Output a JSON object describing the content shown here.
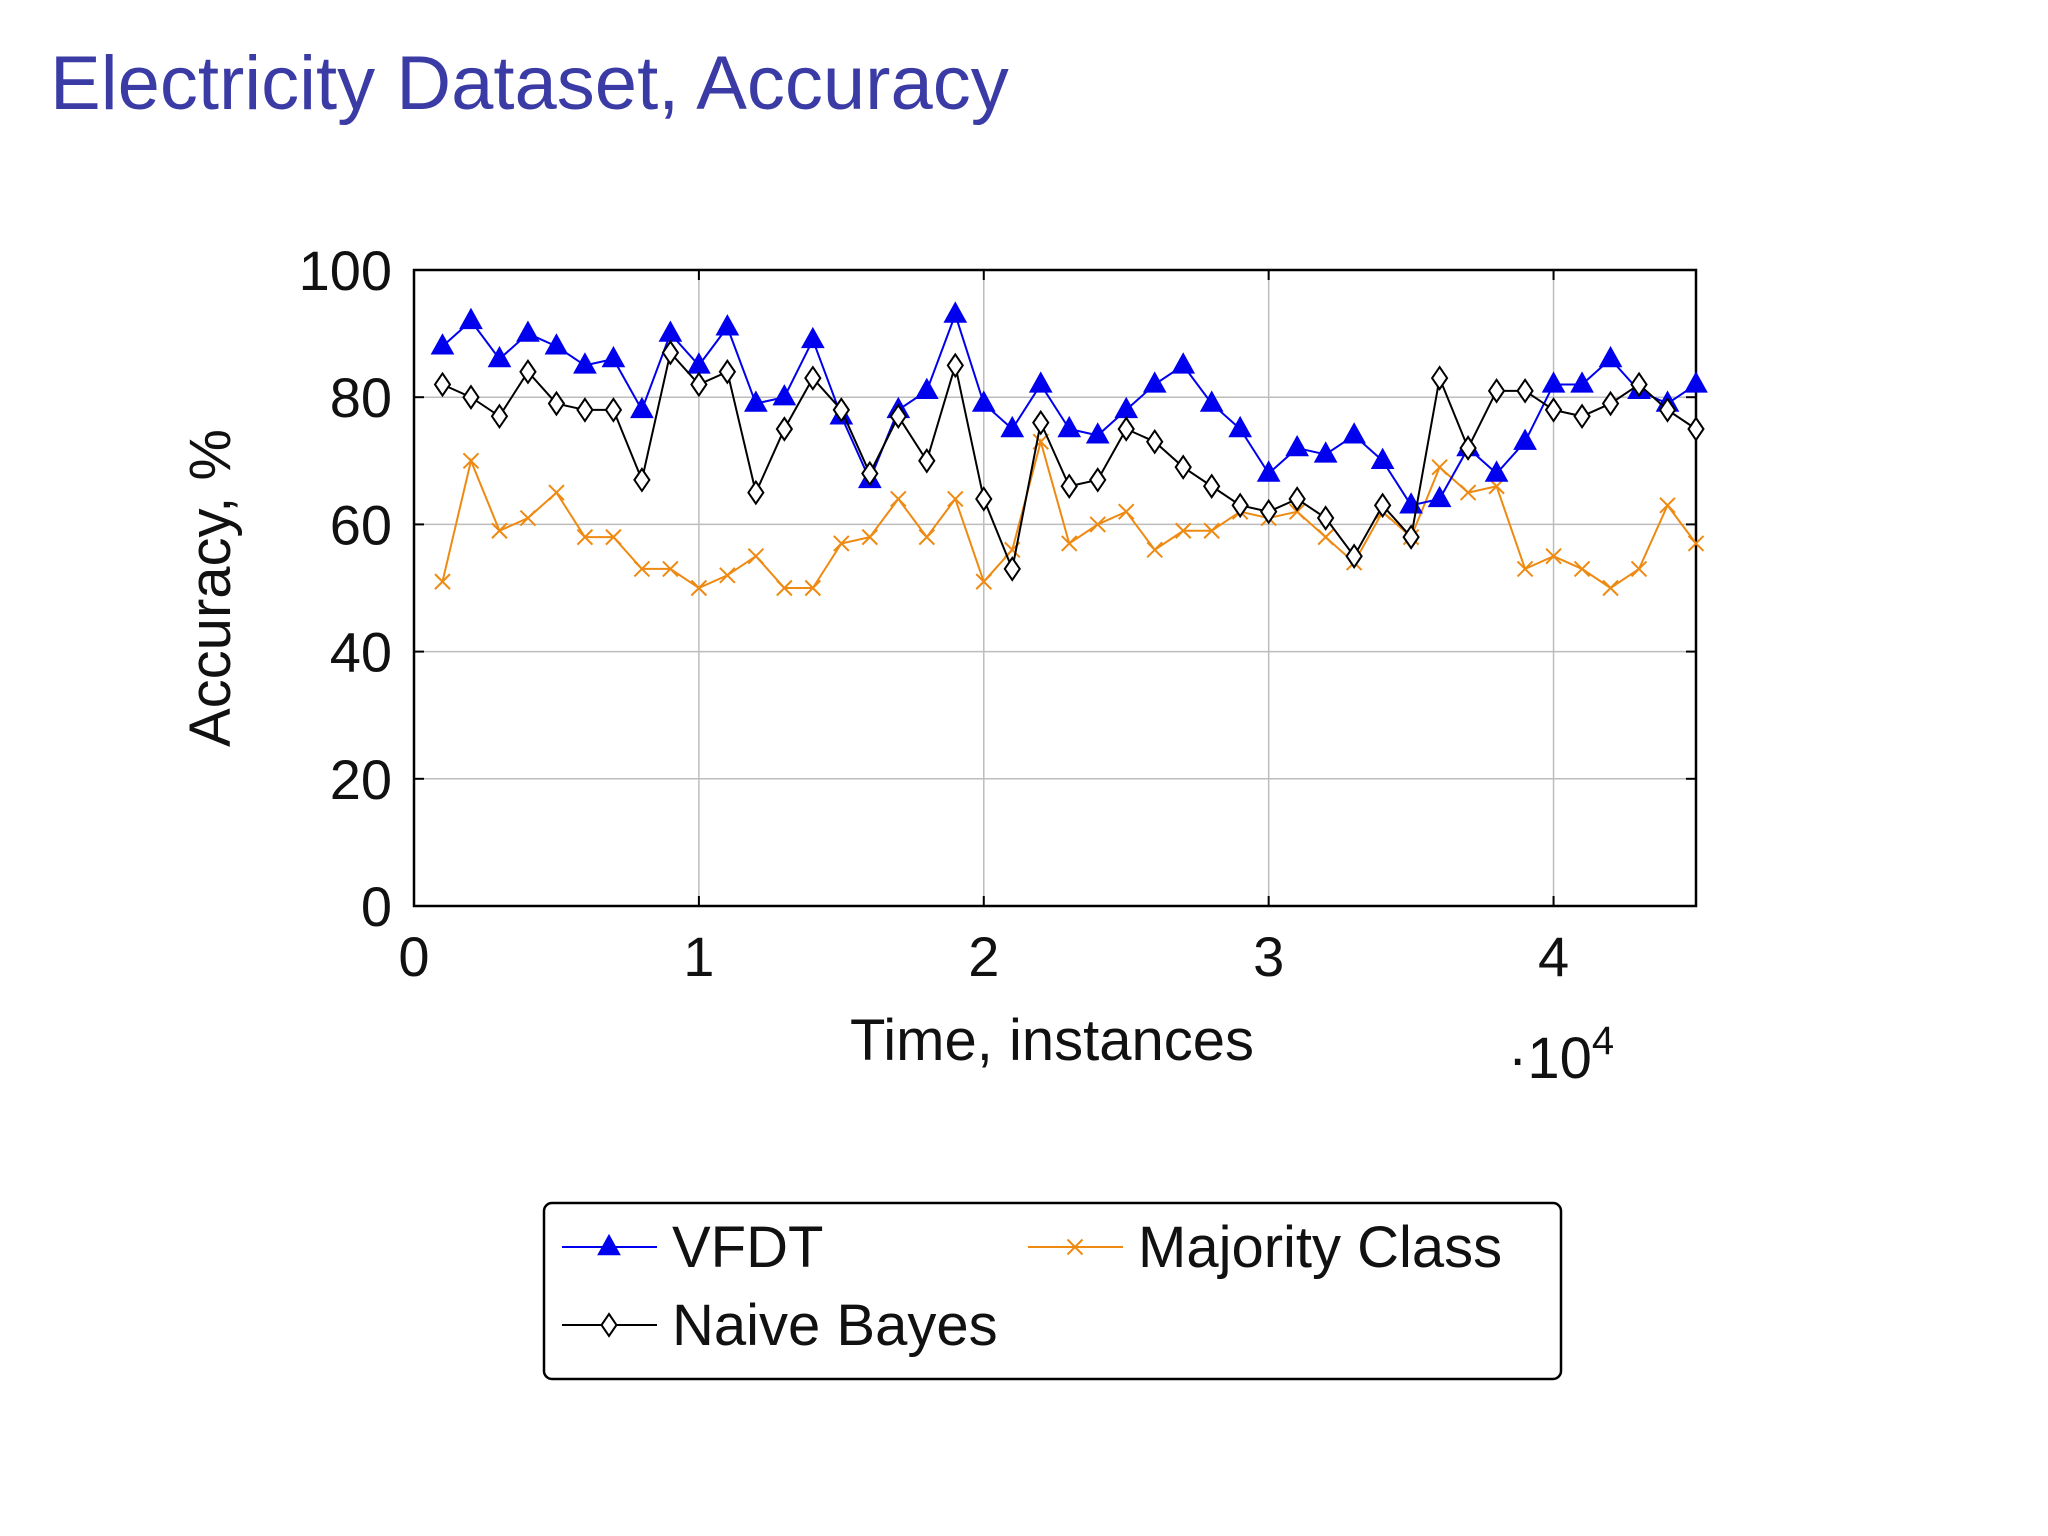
{
  "slide": {
    "title": "Electricity Dataset, Accuracy"
  },
  "colors": {
    "title": "#3b3ba6",
    "vfdt": "#0000ee",
    "naive_bayes": "#000000",
    "majority_class": "#ee8a12",
    "grid": "#bdbdbd"
  },
  "chart_data": {
    "type": "line",
    "title": "",
    "xlabel": "Time, instances",
    "ylabel": "Accuracy, %",
    "x_multiplier_label": "·10",
    "x_multiplier_exponent": "4",
    "xlim": [
      0,
      4.5
    ],
    "ylim": [
      0,
      100
    ],
    "x_ticks": [
      0,
      1,
      2,
      3,
      4
    ],
    "x_tick_labels": [
      "0",
      "1",
      "2",
      "3",
      "4"
    ],
    "y_ticks": [
      0,
      20,
      40,
      60,
      80,
      100
    ],
    "y_tick_labels": [
      "0",
      "20",
      "40",
      "60",
      "80",
      "100"
    ],
    "grid": true,
    "legend_placement": "below",
    "x": [
      0.1,
      0.2,
      0.3,
      0.4,
      0.5,
      0.6,
      0.7,
      0.8,
      0.9,
      1.0,
      1.1,
      1.2,
      1.3,
      1.4,
      1.5,
      1.6,
      1.7,
      1.8,
      1.9,
      2.0,
      2.1,
      2.2,
      2.3,
      2.4,
      2.5,
      2.6,
      2.7,
      2.8,
      2.9,
      3.0,
      3.1,
      3.2,
      3.3,
      3.4,
      3.5,
      3.6,
      3.7,
      3.8,
      3.9,
      4.0,
      4.1,
      4.2,
      4.3,
      4.4,
      4.5
    ],
    "series": [
      {
        "name": "VFDT",
        "marker": "triangle",
        "color": "#0000ee",
        "values": [
          88,
          92,
          86,
          90,
          88,
          85,
          86,
          78,
          90,
          85,
          91,
          79,
          80,
          89,
          77,
          67,
          78,
          81,
          93,
          79,
          75,
          82,
          75,
          74,
          78,
          82,
          85,
          79,
          75,
          68,
          72,
          71,
          74,
          70,
          63,
          64,
          72,
          68,
          73,
          82,
          82,
          86,
          81,
          79,
          82
        ]
      },
      {
        "name": "Naive Bayes",
        "marker": "diamond",
        "color": "#000000",
        "values": [
          82,
          80,
          77,
          84,
          79,
          78,
          78,
          67,
          87,
          82,
          84,
          65,
          75,
          83,
          78,
          68,
          77,
          70,
          85,
          64,
          53,
          76,
          66,
          67,
          75,
          73,
          69,
          66,
          63,
          62,
          64,
          61,
          55,
          63,
          58,
          83,
          72,
          81,
          81,
          78,
          77,
          79,
          82,
          78,
          75
        ]
      },
      {
        "name": "Majority Class",
        "marker": "x",
        "color": "#ee8a12",
        "values": [
          51,
          70,
          59,
          61,
          65,
          58,
          58,
          53,
          53,
          50,
          52,
          55,
          50,
          50,
          57,
          58,
          64,
          58,
          64,
          51,
          56,
          73,
          57,
          60,
          62,
          56,
          59,
          59,
          62,
          61,
          62,
          58,
          54,
          62,
          58,
          69,
          65,
          66,
          53,
          55,
          53,
          50,
          53,
          63,
          57
        ]
      }
    ],
    "legend": {
      "entries": [
        "VFDT",
        "Majority Class",
        "Naive Bayes"
      ]
    }
  }
}
